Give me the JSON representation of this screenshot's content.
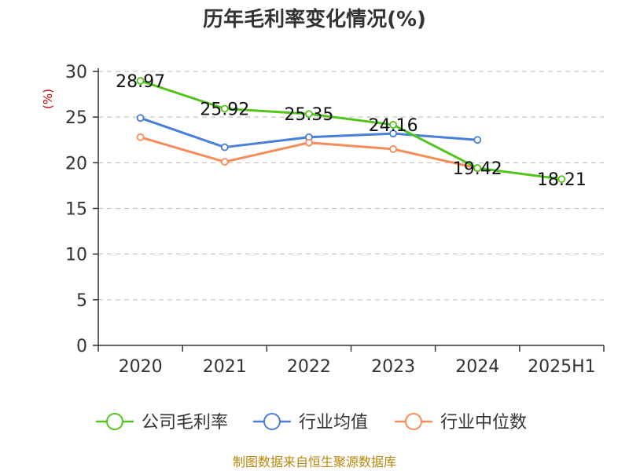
{
  "chart_data": {
    "type": "line",
    "title": "历年毛利率变化情况(%)",
    "ylabel": "(%)",
    "categories": [
      "2020",
      "2021",
      "2022",
      "2023",
      "2024",
      "2025H1"
    ],
    "ylim": [
      0,
      30
    ],
    "yticks": [
      0,
      5,
      10,
      15,
      20,
      25,
      30
    ],
    "grid": true,
    "legend_position": "bottom",
    "series": [
      {
        "name": "公司毛利率",
        "color": "#52c41a",
        "values": [
          28.97,
          25.92,
          25.35,
          24.16,
          19.42,
          18.21
        ],
        "labels": [
          "28.97",
          "25.92",
          "25.35",
          "24.16",
          "19.42",
          "18.21"
        ]
      },
      {
        "name": "行业均值",
        "color": "#4a7fd9",
        "values": [
          24.9,
          21.7,
          22.8,
          23.2,
          22.5,
          null
        ]
      },
      {
        "name": "行业中位数",
        "color": "#f58c5a",
        "values": [
          22.8,
          20.1,
          22.2,
          21.5,
          19.4,
          null
        ]
      }
    ]
  },
  "source": "制图数据来自恒生聚源数据库"
}
